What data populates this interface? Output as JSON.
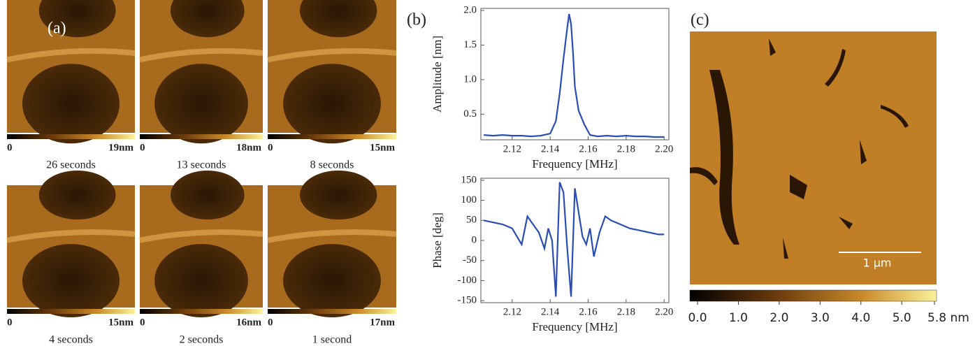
{
  "panel_a": {
    "label": "(a)",
    "images": [
      {
        "scale_min": "0",
        "scale_max": "19nm",
        "caption": "26 seconds"
      },
      {
        "scale_min": "0",
        "scale_max": "18nm",
        "caption": "13 seconds"
      },
      {
        "scale_min": "0",
        "scale_max": "15nm",
        "caption": "8 seconds"
      },
      {
        "scale_min": "0",
        "scale_max": "15nm",
        "caption": "4 seconds"
      },
      {
        "scale_min": "0",
        "scale_max": "16nm",
        "caption": "2 seconds"
      },
      {
        "scale_min": "0",
        "scale_max": "17nm",
        "caption": "1 second"
      }
    ]
  },
  "chart_data": [
    {
      "type": "line",
      "panel_label": "(b)",
      "xlabel": "Frequency [MHz]",
      "ylabel": "Amplitude [nm]",
      "x": [
        2.105,
        2.11,
        2.115,
        2.12,
        2.125,
        2.13,
        2.135,
        2.14,
        2.143,
        2.145,
        2.147,
        2.149,
        2.15,
        2.151,
        2.152,
        2.153,
        2.155,
        2.158,
        2.161,
        2.165,
        2.17,
        2.175,
        2.18,
        2.185,
        2.19,
        2.195,
        2.2
      ],
      "series": [
        {
          "color": "#2a4db5",
          "values": [
            0.2,
            0.19,
            0.2,
            0.19,
            0.19,
            0.18,
            0.19,
            0.22,
            0.4,
            0.8,
            1.3,
            1.75,
            1.95,
            1.8,
            1.4,
            0.9,
            0.55,
            0.35,
            0.2,
            0.18,
            0.19,
            0.18,
            0.19,
            0.18,
            0.18,
            0.17,
            0.17
          ]
        }
      ],
      "xlim": [
        2.1035,
        2.2025
      ],
      "ylim": [
        0.13,
        2.03
      ],
      "xticks": [
        2.12,
        2.14,
        2.16,
        2.18,
        {
          "value": 2.2,
          "label": "2.20"
        }
      ],
      "yticks": [
        0.5,
        {
          "value": 1,
          "label": "1.0"
        },
        1.5,
        {
          "value": 2,
          "label": "2.0"
        }
      ]
    },
    {
      "type": "line",
      "xlabel": "Frequency [MHz]",
      "ylabel": "Phase [deg]",
      "x": [
        2.105,
        2.11,
        2.115,
        2.12,
        2.125,
        2.128,
        2.131,
        2.134,
        2.137,
        2.139,
        2.141,
        2.143,
        2.145,
        2.147,
        2.149,
        2.151,
        2.153,
        2.155,
        2.157,
        2.159,
        2.161,
        2.163,
        2.166,
        2.169,
        2.172,
        2.177,
        2.182,
        2.187,
        2.192,
        2.197,
        2.2
      ],
      "series": [
        {
          "color": "#2a4db5",
          "values": [
            50,
            45,
            40,
            30,
            -10,
            60,
            40,
            20,
            -20,
            30,
            0,
            -140,
            145,
            120,
            -20,
            -140,
            130,
            70,
            10,
            -10,
            30,
            -40,
            20,
            60,
            50,
            40,
            30,
            25,
            20,
            15,
            15
          ]
        }
      ],
      "xlim": [
        2.1035,
        2.2025
      ],
      "ylim": [
        -155,
        155
      ],
      "xticks": [
        2.12,
        2.14,
        2.16,
        2.18,
        {
          "value": 2.2,
          "label": "2.20"
        }
      ],
      "yticks": [
        150,
        100,
        50,
        0,
        -50,
        -100,
        -150
      ]
    }
  ],
  "panel_c": {
    "label": "(c)",
    "scalebar": "1 µm",
    "colorbar_lim": [
      0,
      5.8
    ],
    "colorbar_ticks": [
      {
        "value": 0,
        "label": "0.0"
      },
      {
        "value": 1,
        "label": "1.0"
      },
      {
        "value": 2,
        "label": "2.0"
      },
      {
        "value": 3,
        "label": "3.0"
      },
      {
        "value": 4,
        "label": "4.0"
      },
      {
        "value": 5,
        "label": "5.0"
      },
      {
        "value": 5.8,
        "label": "5.8 nm"
      }
    ]
  }
}
